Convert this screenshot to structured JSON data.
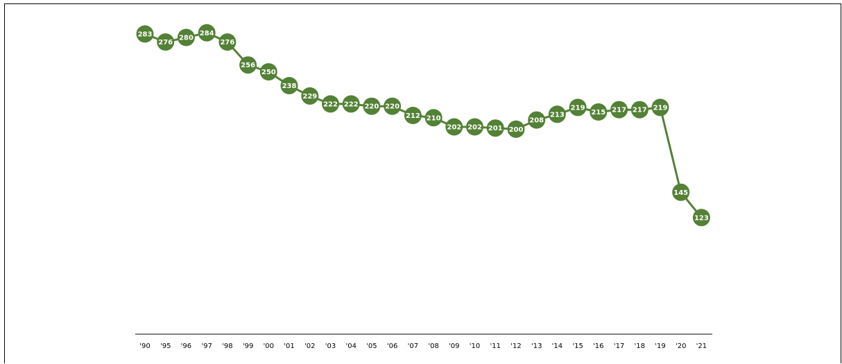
{
  "chart_data": {
    "type": "line",
    "categories": [
      "'90",
      "'95",
      "'96",
      "'97",
      "'98",
      "'99",
      "'00",
      "'01",
      "'02",
      "'03",
      "'04",
      "'05",
      "'06",
      "'07",
      "'08",
      "'09",
      "'10",
      "'11",
      "'12",
      "'13",
      "'14",
      "'15",
      "'16",
      "'17",
      "'18",
      "'19",
      "'20",
      "'21"
    ],
    "values": [
      283,
      276,
      280,
      284,
      276,
      256,
      250,
      238,
      229,
      222,
      222,
      220,
      220,
      212,
      210,
      202,
      202,
      201,
      200,
      208,
      213,
      219,
      215,
      217,
      217,
      219,
      145,
      123
    ],
    "title": "",
    "xlabel": "",
    "ylabel": "",
    "ylim": [
      0,
      300
    ],
    "grid": false,
    "legend": "none",
    "data_labels": true,
    "colors": {
      "series": "#538135",
      "label_text": "#ffffff",
      "axis": "#595959"
    }
  }
}
